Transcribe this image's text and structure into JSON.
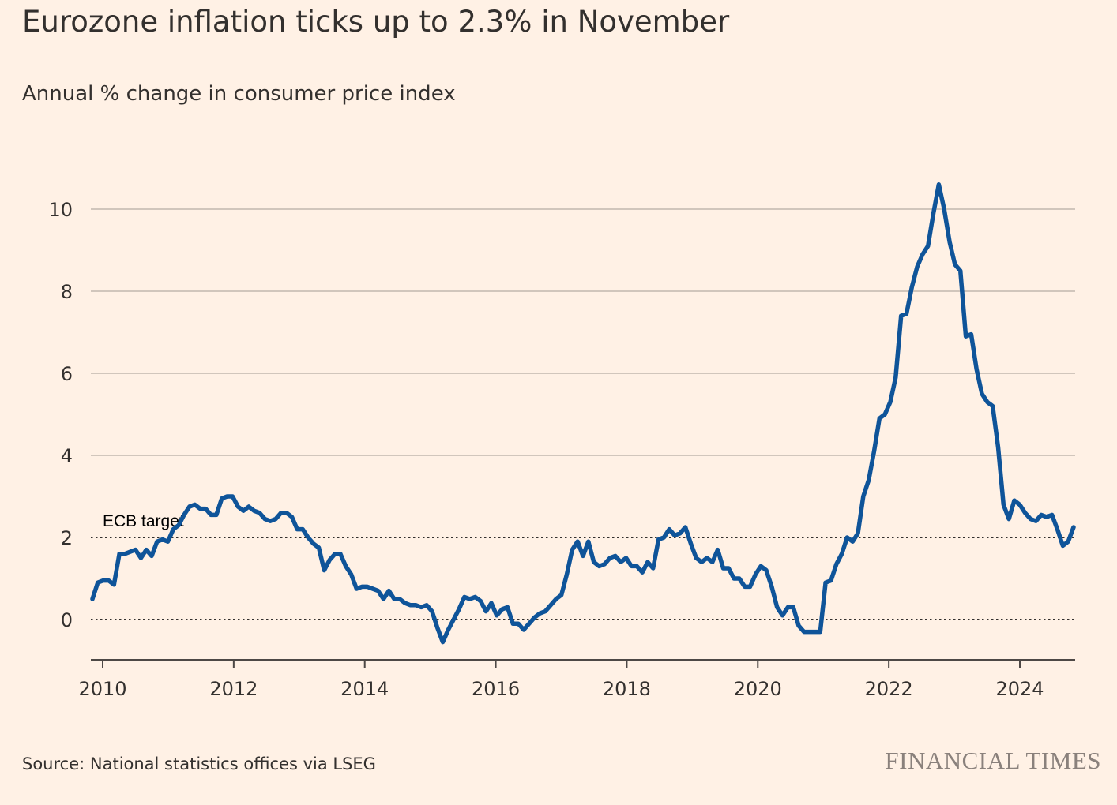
{
  "header": {
    "title": "Eurozone inflation ticks up to 2.3% in November",
    "subtitle": "Annual % change in consumer price index"
  },
  "footer": {
    "source": "Source: National statistics offices via LSEG",
    "brand": "FINANCIAL TIMES"
  },
  "colors": {
    "background": "#fff1e5",
    "line": "#0f5499",
    "grid": "#c2b8ae",
    "text": "#33302e",
    "brand": "#8a817c"
  },
  "chart_data": {
    "type": "line",
    "title": "Eurozone inflation ticks up to 2.3% in November",
    "subtitle": "Annual % change in consumer price index",
    "xlabel": "",
    "ylabel": "",
    "xlim": [
      2009.917,
      2024.833
    ],
    "ylim": [
      -1,
      11
    ],
    "y_ticks": [
      0,
      2,
      4,
      6,
      8,
      10
    ],
    "x_ticks": [
      2010,
      2012,
      2014,
      2016,
      2018,
      2020,
      2022,
      2024
    ],
    "grid": true,
    "reference_lines": [
      {
        "value": 2,
        "label": "ECB target",
        "style": "dotted"
      },
      {
        "value": 0,
        "label": "",
        "style": "dotted"
      }
    ],
    "series": [
      {
        "name": "",
        "points": [
          [
            2009.917,
            0.5
          ],
          [
            2010.0,
            0.9
          ],
          [
            2010.083,
            0.95
          ],
          [
            2010.167,
            0.95
          ],
          [
            2010.25,
            0.85
          ],
          [
            2010.333,
            1.6
          ],
          [
            2010.417,
            1.6
          ],
          [
            2010.5,
            1.65
          ],
          [
            2010.583,
            1.7
          ],
          [
            2010.667,
            1.5
          ],
          [
            2010.75,
            1.7
          ],
          [
            2010.833,
            1.55
          ],
          [
            2010.917,
            1.9
          ],
          [
            2011.0,
            1.95
          ],
          [
            2011.083,
            1.9
          ],
          [
            2011.167,
            2.2
          ],
          [
            2011.25,
            2.3
          ],
          [
            2011.333,
            2.55
          ],
          [
            2011.417,
            2.75
          ],
          [
            2011.5,
            2.8
          ],
          [
            2011.583,
            2.7
          ],
          [
            2011.667,
            2.7
          ],
          [
            2011.75,
            2.55
          ],
          [
            2011.833,
            2.55
          ],
          [
            2011.917,
            2.95
          ],
          [
            2012.0,
            3.0
          ],
          [
            2012.083,
            3.0
          ],
          [
            2012.167,
            2.75
          ],
          [
            2012.25,
            2.65
          ],
          [
            2012.333,
            2.75
          ],
          [
            2012.417,
            2.65
          ],
          [
            2012.5,
            2.6
          ],
          [
            2012.583,
            2.45
          ],
          [
            2012.667,
            2.4
          ],
          [
            2012.75,
            2.45
          ],
          [
            2012.833,
            2.6
          ],
          [
            2012.917,
            2.6
          ],
          [
            2013.0,
            2.5
          ],
          [
            2013.083,
            2.2
          ],
          [
            2013.167,
            2.2
          ],
          [
            2013.25,
            2.0
          ],
          [
            2013.333,
            1.85
          ],
          [
            2013.417,
            1.75
          ],
          [
            2013.5,
            1.2
          ],
          [
            2013.583,
            1.45
          ],
          [
            2013.667,
            1.6
          ],
          [
            2013.75,
            1.6
          ],
          [
            2013.833,
            1.3
          ],
          [
            2013.917,
            1.1
          ],
          [
            2014.0,
            0.75
          ],
          [
            2014.083,
            0.8
          ],
          [
            2014.167,
            0.8
          ],
          [
            2014.25,
            0.75
          ],
          [
            2014.333,
            0.7
          ],
          [
            2014.417,
            0.5
          ],
          [
            2014.5,
            0.7
          ],
          [
            2014.583,
            0.5
          ],
          [
            2014.667,
            0.5
          ],
          [
            2014.75,
            0.4
          ],
          [
            2014.833,
            0.35
          ],
          [
            2014.917,
            0.35
          ],
          [
            2015.0,
            0.3
          ],
          [
            2015.083,
            0.35
          ],
          [
            2015.167,
            0.2
          ],
          [
            2015.25,
            -0.2
          ],
          [
            2015.333,
            -0.55
          ],
          [
            2015.417,
            -0.25
          ],
          [
            2015.5,
            0.0
          ],
          [
            2015.583,
            0.25
          ],
          [
            2015.667,
            0.55
          ],
          [
            2015.75,
            0.5
          ],
          [
            2015.833,
            0.55
          ],
          [
            2015.917,
            0.45
          ],
          [
            2016.0,
            0.2
          ],
          [
            2016.083,
            0.4
          ],
          [
            2016.167,
            0.1
          ],
          [
            2016.25,
            0.25
          ],
          [
            2016.333,
            0.3
          ],
          [
            2016.417,
            -0.1
          ],
          [
            2016.5,
            -0.1
          ],
          [
            2016.583,
            -0.25
          ],
          [
            2016.667,
            -0.1
          ],
          [
            2016.75,
            0.05
          ],
          [
            2016.833,
            0.15
          ],
          [
            2016.917,
            0.2
          ],
          [
            2017.0,
            0.35
          ],
          [
            2017.083,
            0.5
          ],
          [
            2017.167,
            0.6
          ],
          [
            2017.25,
            1.1
          ],
          [
            2017.333,
            1.7
          ],
          [
            2017.417,
            1.9
          ],
          [
            2017.5,
            1.55
          ],
          [
            2017.583,
            1.9
          ],
          [
            2017.667,
            1.4
          ],
          [
            2017.75,
            1.3
          ],
          [
            2017.833,
            1.35
          ],
          [
            2017.917,
            1.5
          ],
          [
            2018.0,
            1.55
          ],
          [
            2018.083,
            1.4
          ],
          [
            2018.167,
            1.5
          ],
          [
            2018.25,
            1.3
          ],
          [
            2018.333,
            1.3
          ],
          [
            2018.417,
            1.15
          ],
          [
            2018.5,
            1.4
          ],
          [
            2018.583,
            1.25
          ],
          [
            2018.667,
            1.95
          ],
          [
            2018.75,
            2.0
          ],
          [
            2018.833,
            2.2
          ],
          [
            2018.917,
            2.05
          ],
          [
            2019.0,
            2.1
          ],
          [
            2019.083,
            2.25
          ],
          [
            2019.167,
            1.85
          ],
          [
            2019.25,
            1.5
          ],
          [
            2019.333,
            1.4
          ],
          [
            2019.417,
            1.5
          ],
          [
            2019.5,
            1.4
          ],
          [
            2019.583,
            1.7
          ],
          [
            2019.667,
            1.25
          ],
          [
            2019.75,
            1.25
          ],
          [
            2019.833,
            1.0
          ],
          [
            2019.917,
            1.0
          ],
          [
            2020.0,
            0.8
          ],
          [
            2020.083,
            0.8
          ],
          [
            2020.167,
            1.1
          ],
          [
            2020.25,
            1.3
          ],
          [
            2020.333,
            1.2
          ],
          [
            2020.417,
            0.8
          ],
          [
            2020.5,
            0.3
          ],
          [
            2020.583,
            0.1
          ],
          [
            2020.667,
            0.3
          ],
          [
            2020.75,
            0.3
          ],
          [
            2020.833,
            -0.15
          ],
          [
            2020.917,
            -0.3
          ],
          [
            2021.0,
            -0.3
          ],
          [
            2021.083,
            -0.3
          ],
          [
            2021.167,
            -0.3
          ],
          [
            2021.25,
            0.9
          ],
          [
            2021.333,
            0.95
          ],
          [
            2021.417,
            1.35
          ],
          [
            2021.5,
            1.6
          ],
          [
            2021.583,
            2.0
          ],
          [
            2021.667,
            1.9
          ],
          [
            2021.75,
            2.1
          ],
          [
            2021.833,
            3.0
          ],
          [
            2021.917,
            3.4
          ],
          [
            2022.0,
            4.1
          ],
          [
            2022.083,
            4.9
          ],
          [
            2022.167,
            5.0
          ],
          [
            2022.25,
            5.3
          ],
          [
            2022.333,
            5.9
          ],
          [
            2022.417,
            7.4
          ],
          [
            2022.5,
            7.45
          ],
          [
            2022.583,
            8.1
          ],
          [
            2022.667,
            8.6
          ],
          [
            2022.75,
            8.9
          ],
          [
            2022.833,
            9.1
          ],
          [
            2022.917,
            9.9
          ],
          [
            2023.0,
            10.6
          ],
          [
            2023.083,
            10.0
          ],
          [
            2023.167,
            9.2
          ],
          [
            2023.25,
            8.65
          ],
          [
            2023.333,
            8.5
          ],
          [
            2023.417,
            6.9
          ],
          [
            2023.5,
            6.95
          ],
          [
            2023.583,
            6.1
          ],
          [
            2023.667,
            5.5
          ],
          [
            2023.75,
            5.3
          ],
          [
            2023.833,
            5.2
          ],
          [
            2023.917,
            4.2
          ],
          [
            2024.0,
            2.8
          ],
          [
            2024.083,
            2.45
          ],
          [
            2024.167,
            2.9
          ],
          [
            2024.25,
            2.8
          ],
          [
            2024.333,
            2.6
          ],
          [
            2024.417,
            2.45
          ],
          [
            2024.5,
            2.4
          ],
          [
            2024.583,
            2.55
          ],
          [
            2024.667,
            2.5
          ],
          [
            2024.75,
            2.55
          ],
          [
            2024.833,
            2.2
          ],
          [
            2024.917,
            1.8
          ],
          [
            2025.0,
            1.9
          ],
          [
            2025.083,
            2.25
          ]
        ]
      }
    ]
  }
}
